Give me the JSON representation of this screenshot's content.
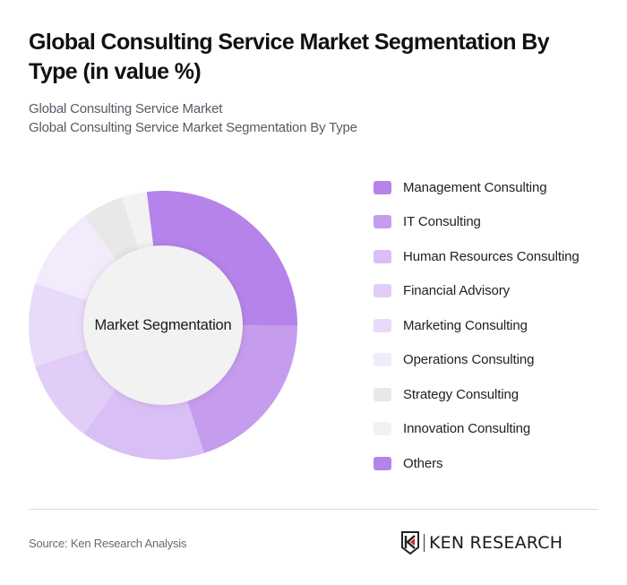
{
  "header": {
    "title": "Global Consulting Service Market Segmentation By Type (in value %)",
    "subtitle_1": "Global Consulting Service Market",
    "subtitle_2": "Global Consulting Service Market Segmentation By Type"
  },
  "chart": {
    "center_label": "Market Segmentation"
  },
  "legend": {
    "items": [
      {
        "label": "Management Consulting",
        "color": "#b583ea"
      },
      {
        "label": "IT Consulting",
        "color": "#c59cee"
      },
      {
        "label": "Human Resources Consulting",
        "color": "#d8bff5"
      },
      {
        "label": "Financial Advisory",
        "color": "#e1cdf7"
      },
      {
        "label": "Marketing Consulting",
        "color": "#e8dbf9"
      },
      {
        "label": "Operations Consulting",
        "color": "#f2ebfc"
      },
      {
        "label": "Strategy Consulting",
        "color": "#e8e8e8"
      },
      {
        "label": "Innovation Consulting",
        "color": "#f2f2f2"
      },
      {
        "label": "Others",
        "color": "#b583ea"
      }
    ]
  },
  "footer": {
    "source": "Source: Ken Research Analysis",
    "logo_text": "KEN RESEARCH"
  },
  "chart_data": {
    "type": "pie",
    "variant": "donut",
    "title": "Global Consulting Service Market Segmentation By Type (in value %)",
    "subtitle": "Global Consulting Service Market Segmentation By Type",
    "center_label": "Market Segmentation",
    "categories": [
      "Management Consulting",
      "IT Consulting",
      "Human Resources Consulting",
      "Financial Advisory",
      "Marketing Consulting",
      "Operations Consulting",
      "Strategy Consulting",
      "Innovation Consulting",
      "Others"
    ],
    "values": [
      27,
      20,
      15,
      10,
      10,
      10,
      5,
      3,
      0
    ],
    "colors": [
      "#b583ea",
      "#c59cee",
      "#d8bff5",
      "#e1cdf7",
      "#e8dbf9",
      "#f2ebfc",
      "#e8e8e8",
      "#f2f2f2",
      "#b583ea"
    ],
    "unit": "%",
    "start_angle_deg": -7,
    "legend_position": "right",
    "source": "Source: Ken Research Analysis"
  }
}
